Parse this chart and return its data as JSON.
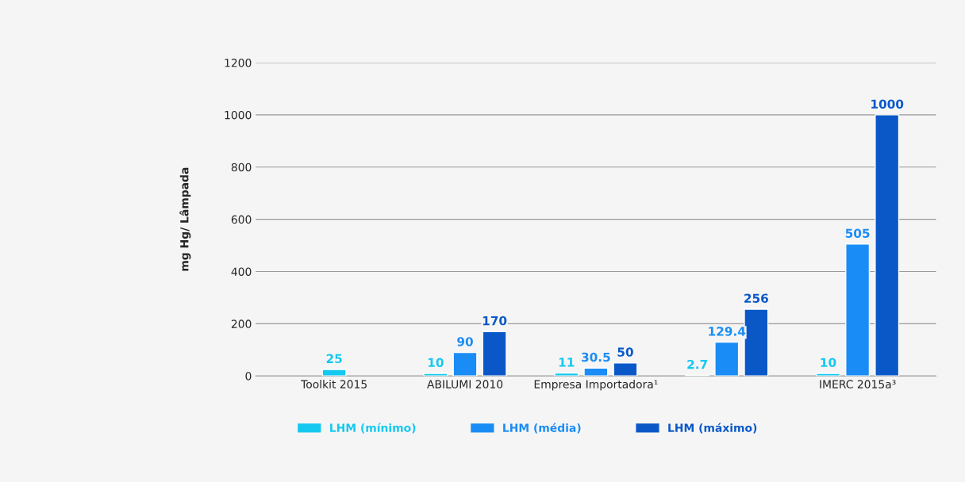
{
  "chart_data": {
    "type": "bar",
    "ylabel": "mg Hg/ Lâmpada",
    "categories": [
      "Toolkit 2015",
      "ABILUMI 2010",
      "Empresa Importadora¹",
      null,
      "IMERC 2015a³"
    ],
    "series": [
      {
        "name": "LHM (mínimo)",
        "color": "#14c8f0",
        "values": [
          25,
          10,
          11,
          2.7,
          10
        ]
      },
      {
        "name": "LHM (média)",
        "color": "#1a8cf5",
        "values": [
          null,
          90,
          30.5,
          129.4,
          505
        ]
      },
      {
        "name": "LHM (máximo)",
        "color": "#0a58c8",
        "values": [
          null,
          170,
          50,
          256,
          1000
        ]
      }
    ],
    "ylim": [
      0,
      1200
    ],
    "yticks": [
      0,
      200,
      400,
      600,
      800,
      1000,
      1200
    ],
    "grid": "y",
    "legend": "bottom",
    "data_labels": true
  }
}
